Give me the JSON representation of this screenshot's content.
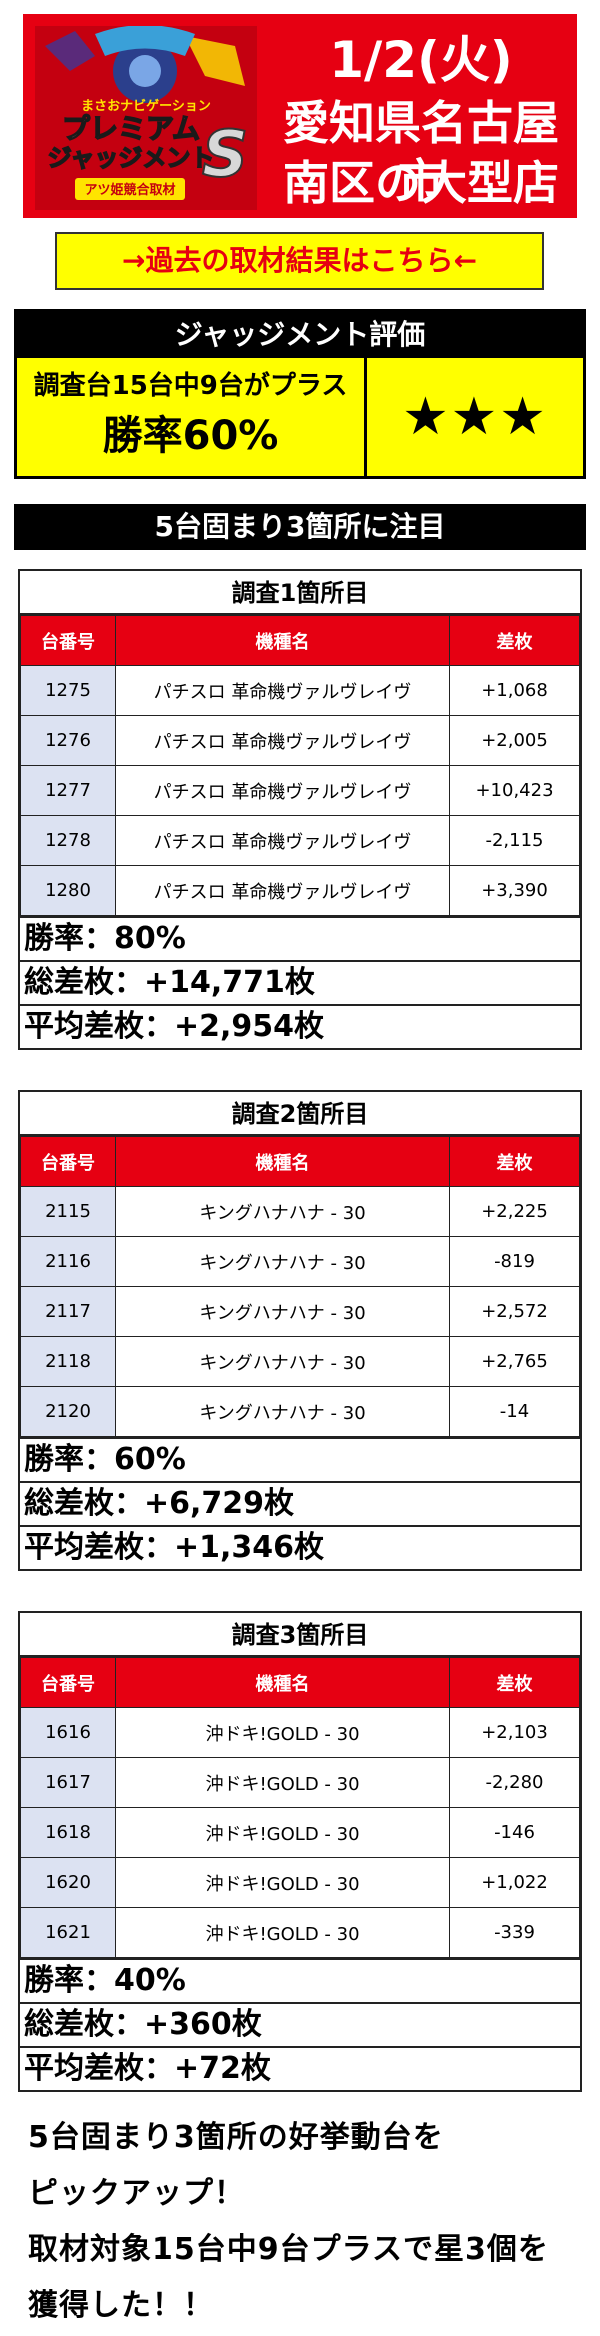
{
  "header": {
    "logo_text": {
      "top": "まさおナビゲーション",
      "main1": "プレミアム",
      "main2": "ジャッジメント",
      "s": "S",
      "badge": "アツ姫競合取材"
    },
    "date": "1/2(火)",
    "location_line1": "愛知県名古屋市",
    "location_line2": "南区の大型店"
  },
  "past_link": "→過去の取材結果はこちら←",
  "judgment": {
    "title": "ジャッジメント評価",
    "description": "調査台15台中9台がプラス",
    "win_rate": "勝率60%",
    "stars": "★★★"
  },
  "focus_banner": "5台固まり3箇所に注目",
  "columns": [
    "台番号",
    "機種名",
    "差枚"
  ],
  "surveys": [
    {
      "title": "調査1箇所目",
      "rows": [
        {
          "no": "1275",
          "model": "パチスロ 革命機ヴァルヴレイヴ",
          "diff": "+1,068"
        },
        {
          "no": "1276",
          "model": "パチスロ 革命機ヴァルヴレイヴ",
          "diff": "+2,005"
        },
        {
          "no": "1277",
          "model": "パチスロ 革命機ヴァルヴレイヴ",
          "diff": "+10,423"
        },
        {
          "no": "1278",
          "model": "パチスロ 革命機ヴァルヴレイヴ",
          "diff": "-2,115"
        },
        {
          "no": "1280",
          "model": "パチスロ 革命機ヴァルヴレイヴ",
          "diff": "+3,390"
        }
      ],
      "win_rate": "勝率：80%",
      "total": "総差枚：+14,771枚",
      "average": "平均差枚：+2,954枚"
    },
    {
      "title": "調査2箇所目",
      "rows": [
        {
          "no": "2115",
          "model": "キングハナハナ - 30",
          "diff": "+2,225"
        },
        {
          "no": "2116",
          "model": "キングハナハナ - 30",
          "diff": "-819"
        },
        {
          "no": "2117",
          "model": "キングハナハナ - 30",
          "diff": "+2,572"
        },
        {
          "no": "2118",
          "model": "キングハナハナ - 30",
          "diff": "+2,765"
        },
        {
          "no": "2120",
          "model": "キングハナハナ - 30",
          "diff": "-14"
        }
      ],
      "win_rate": "勝率：60%",
      "total": "総差枚：+6,729枚",
      "average": "平均差枚：+1,346枚"
    },
    {
      "title": "調査3箇所目",
      "rows": [
        {
          "no": "1616",
          "model": "沖ドキ!GOLD - 30",
          "diff": "+2,103"
        },
        {
          "no": "1617",
          "model": "沖ドキ!GOLD - 30",
          "diff": "-2,280"
        },
        {
          "no": "1618",
          "model": "沖ドキ!GOLD - 30",
          "diff": "-146"
        },
        {
          "no": "1620",
          "model": "沖ドキ!GOLD - 30",
          "diff": "+1,022"
        },
        {
          "no": "1621",
          "model": "沖ドキ!GOLD - 30",
          "diff": "-339"
        }
      ],
      "win_rate": "勝率：40%",
      "total": "総差枚：+360枚",
      "average": "平均差枚：+72枚"
    }
  ],
  "closing": [
    "5台固まり3箇所の好挙動台を",
    "ピックアップ！",
    "取材対象15台中9台プラスで星3個を",
    "獲得した！！"
  ],
  "colors": {
    "brand_red": "#e60012",
    "highlight_yellow": "#ffff00",
    "number_cell": "#dce2f2"
  }
}
